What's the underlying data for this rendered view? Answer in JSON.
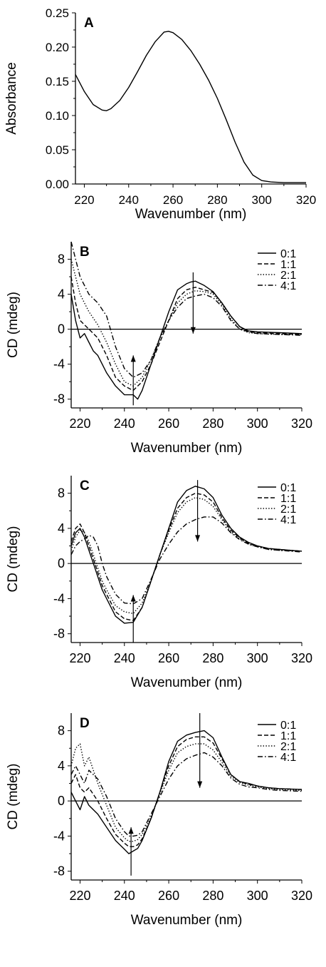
{
  "chart_data": [
    {
      "type": "line",
      "panel_label": "A",
      "xlabel": "Wavenumber (nm)",
      "ylabel": "Absorbance",
      "xlim": [
        216,
        320
      ],
      "ylim": [
        0,
        0.25
      ],
      "x_ticks": [
        220,
        240,
        260,
        280,
        300,
        320
      ],
      "y_ticks": [
        "0.00",
        "0.05",
        "0.10",
        "0.15",
        "0.20",
        "0.25"
      ],
      "grid": false,
      "zero_line": false,
      "series": [
        {
          "style": "solid",
          "x": [
            216,
            220,
            224,
            228,
            230,
            232,
            236,
            240,
            244,
            248,
            252,
            256,
            258,
            260,
            264,
            268,
            272,
            276,
            280,
            284,
            288,
            292,
            296,
            300,
            304,
            310,
            320
          ],
          "y": [
            0.16,
            0.135,
            0.116,
            0.108,
            0.107,
            0.11,
            0.122,
            0.141,
            0.164,
            0.188,
            0.208,
            0.222,
            0.223,
            0.221,
            0.211,
            0.195,
            0.175,
            0.152,
            0.125,
            0.094,
            0.061,
            0.032,
            0.013,
            0.005,
            0.003,
            0.002,
            0.002
          ]
        }
      ]
    },
    {
      "type": "line",
      "panel_label": "B",
      "xlabel": "Wavenumber (nm)",
      "ylabel": "CD (mdeg)",
      "xlim": [
        216,
        320
      ],
      "ylim": [
        -9,
        10
      ],
      "x_ticks": [
        220,
        240,
        260,
        280,
        300,
        320
      ],
      "y_ticks": [
        -8,
        -4,
        0,
        4,
        8
      ],
      "grid": false,
      "zero_line": true,
      "legend_position": "top-right",
      "series": [
        {
          "name": "0:1",
          "style": "solid",
          "x": [
            216,
            218,
            220,
            222,
            224,
            226,
            228,
            232,
            236,
            240,
            244,
            246,
            248,
            252,
            256,
            260,
            264,
            268,
            270,
            272,
            276,
            280,
            284,
            288,
            292,
            296,
            300,
            310,
            320
          ],
          "y": [
            4,
            1,
            -1,
            -0.5,
            -1.5,
            -2.5,
            -3,
            -5,
            -6.5,
            -7.5,
            -7.5,
            -8,
            -7,
            -4,
            -1,
            2,
            4.5,
            5.2,
            5.4,
            5.5,
            5,
            4.3,
            3,
            1.5,
            0.3,
            -0.2,
            -0.3,
            -0.4,
            -0.5
          ]
        },
        {
          "name": "1:1",
          "style": "dashed",
          "x": [
            216,
            218,
            220,
            224,
            228,
            232,
            236,
            240,
            244,
            248,
            252,
            256,
            260,
            264,
            268,
            272,
            276,
            280,
            284,
            288,
            292,
            296,
            300,
            310,
            320
          ],
          "y": [
            6,
            3,
            1,
            0,
            -1,
            -3,
            -5.5,
            -6.5,
            -7,
            -6,
            -4,
            -1.5,
            1,
            3.5,
            4.5,
            4.8,
            4.5,
            4.2,
            3,
            1.5,
            0.3,
            -0.3,
            -0.4,
            -0.5,
            -0.6
          ]
        },
        {
          "name": "2:1",
          "style": "dotted",
          "x": [
            216,
            218,
            220,
            224,
            228,
            232,
            236,
            240,
            244,
            248,
            252,
            256,
            260,
            264,
            268,
            272,
            276,
            280,
            284,
            288,
            292,
            296,
            300,
            310,
            320
          ],
          "y": [
            8,
            6,
            4,
            2,
            0.5,
            -1.5,
            -4,
            -6,
            -6.5,
            -5.5,
            -3.5,
            -1,
            1,
            3,
            4,
            4.4,
            4.3,
            4,
            2.8,
            1.2,
            0,
            -0.4,
            -0.5,
            -0.6,
            -0.6
          ]
        },
        {
          "name": "4:1",
          "style": "dashdot",
          "x": [
            216,
            218,
            220,
            224,
            228,
            232,
            236,
            240,
            244,
            248,
            252,
            256,
            260,
            264,
            268,
            272,
            276,
            280,
            284,
            288,
            292,
            296,
            300,
            310,
            320
          ],
          "y": [
            10,
            8,
            6,
            4,
            3,
            1.5,
            -2,
            -4.5,
            -5.5,
            -5,
            -3.5,
            -1,
            1,
            2.5,
            3.5,
            3.8,
            4,
            3.6,
            2.6,
            1,
            0,
            -0.3,
            -0.5,
            -0.6,
            -0.7
          ]
        }
      ],
      "arrows": [
        {
          "x": 271,
          "from": 6.5,
          "to": -0.5
        },
        {
          "x": 244,
          "from": -8.7,
          "to": -3
        }
      ]
    },
    {
      "type": "line",
      "panel_label": "C",
      "xlabel": "Wavenumber (nm)",
      "ylabel": "CD (mdeg)",
      "xlim": [
        216,
        320
      ],
      "ylim": [
        -9,
        10
      ],
      "x_ticks": [
        220,
        240,
        260,
        280,
        300,
        320
      ],
      "y_ticks": [
        -8,
        -4,
        0,
        4,
        8
      ],
      "grid": false,
      "zero_line": true,
      "legend_position": "top-right",
      "series": [
        {
          "name": "0:1",
          "style": "solid",
          "x": [
            216,
            218,
            220,
            222,
            224,
            226,
            228,
            230,
            232,
            236,
            240,
            244,
            248,
            252,
            256,
            260,
            264,
            268,
            272,
            276,
            280,
            284,
            288,
            292,
            296,
            300,
            305,
            310,
            320
          ],
          "y": [
            2,
            3.5,
            4,
            3,
            1.5,
            0,
            -1.5,
            -3,
            -4,
            -6,
            -6.8,
            -6.7,
            -5,
            -2,
            1,
            4,
            7,
            8.3,
            8.8,
            8.5,
            7.5,
            5.5,
            4,
            3,
            2.4,
            2,
            1.7,
            1.6,
            1.4
          ]
        },
        {
          "name": "1:1",
          "style": "dashed",
          "x": [
            216,
            218,
            220,
            222,
            224,
            226,
            228,
            230,
            232,
            236,
            240,
            244,
            248,
            252,
            256,
            260,
            264,
            268,
            272,
            276,
            280,
            284,
            288,
            292,
            296,
            300,
            305,
            310,
            320
          ],
          "y": [
            2.5,
            4,
            4.5,
            3.5,
            2,
            0.5,
            -1,
            -2.5,
            -3.5,
            -5.5,
            -6.3,
            -6.5,
            -5,
            -2,
            1,
            3.8,
            6.3,
            7.5,
            8,
            7.8,
            7,
            5.2,
            3.8,
            2.9,
            2.3,
            2,
            1.7,
            1.6,
            1.4
          ]
        },
        {
          "name": "2:1",
          "style": "dotted",
          "x": [
            216,
            218,
            220,
            222,
            224,
            226,
            228,
            230,
            232,
            236,
            240,
            244,
            248,
            252,
            256,
            260,
            264,
            268,
            272,
            276,
            280,
            284,
            288,
            292,
            296,
            300,
            305,
            310,
            320
          ],
          "y": [
            1.5,
            3,
            3.8,
            3.5,
            2.5,
            1,
            -0.5,
            -2,
            -3,
            -4.8,
            -5.5,
            -5.7,
            -4.5,
            -2,
            1,
            3.5,
            5.8,
            7,
            7.5,
            7.3,
            6.5,
            5,
            3.6,
            2.8,
            2.2,
            1.9,
            1.6,
            1.5,
            1.4
          ]
        },
        {
          "name": "4:1",
          "style": "dashdot",
          "x": [
            216,
            218,
            220,
            222,
            224,
            226,
            228,
            230,
            232,
            236,
            240,
            244,
            248,
            252,
            256,
            260,
            264,
            268,
            272,
            276,
            280,
            284,
            288,
            292,
            296,
            300,
            305,
            310,
            320
          ],
          "y": [
            1,
            2,
            2.5,
            2.8,
            3.2,
            3,
            2,
            0,
            -1.5,
            -3.5,
            -4.5,
            -4.6,
            -4,
            -1.8,
            0.5,
            2.2,
            3.6,
            4.5,
            5,
            5.3,
            5.3,
            4.6,
            3.5,
            2.7,
            2.2,
            1.9,
            1.6,
            1.5,
            1.3
          ]
        }
      ],
      "arrows": [
        {
          "x": 273,
          "from": 9.5,
          "to": 2.5
        },
        {
          "x": 244,
          "from": -9,
          "to": -3.6
        }
      ]
    },
    {
      "type": "line",
      "panel_label": "D",
      "xlabel": "Wavenumber (nm)",
      "ylabel": "CD (mdeg)",
      "xlim": [
        216,
        320
      ],
      "ylim": [
        -9,
        10
      ],
      "x_ticks": [
        220,
        240,
        260,
        280,
        300,
        320
      ],
      "y_ticks": [
        -8,
        -4,
        0,
        4,
        8
      ],
      "grid": false,
      "zero_line": true,
      "legend_position": "top-right",
      "series": [
        {
          "name": "0:1",
          "style": "solid",
          "x": [
            216,
            218,
            220,
            222,
            224,
            228,
            232,
            236,
            240,
            242,
            244,
            246,
            248,
            252,
            256,
            260,
            264,
            268,
            272,
            276,
            280,
            284,
            288,
            292,
            296,
            300,
            305,
            310,
            320
          ],
          "y": [
            1,
            0,
            -1,
            0.5,
            -0.5,
            -1.5,
            -3,
            -4.5,
            -5.5,
            -6,
            -5.7,
            -5.4,
            -4.5,
            -2,
            1,
            4.5,
            6.8,
            7.5,
            7.8,
            8,
            7.2,
            5,
            3,
            2.2,
            2,
            1.7,
            1.5,
            1.4,
            1.3
          ]
        },
        {
          "name": "1:1",
          "style": "dashed",
          "x": [
            216,
            218,
            220,
            222,
            224,
            228,
            232,
            236,
            240,
            242,
            244,
            246,
            248,
            252,
            256,
            260,
            264,
            268,
            272,
            276,
            280,
            284,
            288,
            292,
            296,
            300,
            305,
            310,
            320
          ],
          "y": [
            2,
            3,
            1.5,
            1,
            1.5,
            0,
            -2,
            -3.8,
            -4.8,
            -5.2,
            -5.2,
            -5,
            -4.3,
            -2,
            1,
            4,
            6.2,
            7,
            7.3,
            7.3,
            6.6,
            4.8,
            3,
            2.2,
            1.9,
            1.7,
            1.5,
            1.4,
            1.3
          ]
        },
        {
          "name": "2:1",
          "style": "dotted",
          "x": [
            216,
            218,
            220,
            222,
            224,
            228,
            232,
            236,
            240,
            242,
            244,
            246,
            248,
            252,
            256,
            260,
            264,
            268,
            272,
            276,
            280,
            284,
            288,
            292,
            296,
            300,
            305,
            310,
            320
          ],
          "y": [
            4,
            6,
            6.5,
            4,
            5,
            2,
            -0.5,
            -3,
            -4.2,
            -4.6,
            -4.6,
            -4.4,
            -3.8,
            -1.8,
            0.8,
            3.5,
            5.5,
            6.2,
            6.5,
            6.5,
            5.8,
            4.4,
            2.8,
            2.1,
            1.8,
            1.6,
            1.4,
            1.3,
            1.2
          ]
        },
        {
          "name": "4:1",
          "style": "dashdot",
          "x": [
            216,
            218,
            220,
            222,
            224,
            228,
            232,
            236,
            240,
            242,
            244,
            246,
            248,
            252,
            256,
            260,
            264,
            268,
            272,
            276,
            280,
            284,
            288,
            292,
            296,
            300,
            305,
            310,
            320
          ],
          "y": [
            3,
            4,
            3,
            2,
            3.5,
            2.5,
            0.5,
            -2,
            -3.5,
            -4,
            -4,
            -3.9,
            -3.5,
            -1.5,
            0.5,
            2.5,
            4,
            4.8,
            5.2,
            5.5,
            5,
            4,
            2.6,
            1.9,
            1.6,
            1.5,
            1.3,
            1.2,
            1.1
          ]
        }
      ],
      "arrows": [
        {
          "x": 274,
          "from": 10,
          "to": 1.5
        },
        {
          "x": 243,
          "from": -8.5,
          "to": -3
        }
      ]
    }
  ]
}
